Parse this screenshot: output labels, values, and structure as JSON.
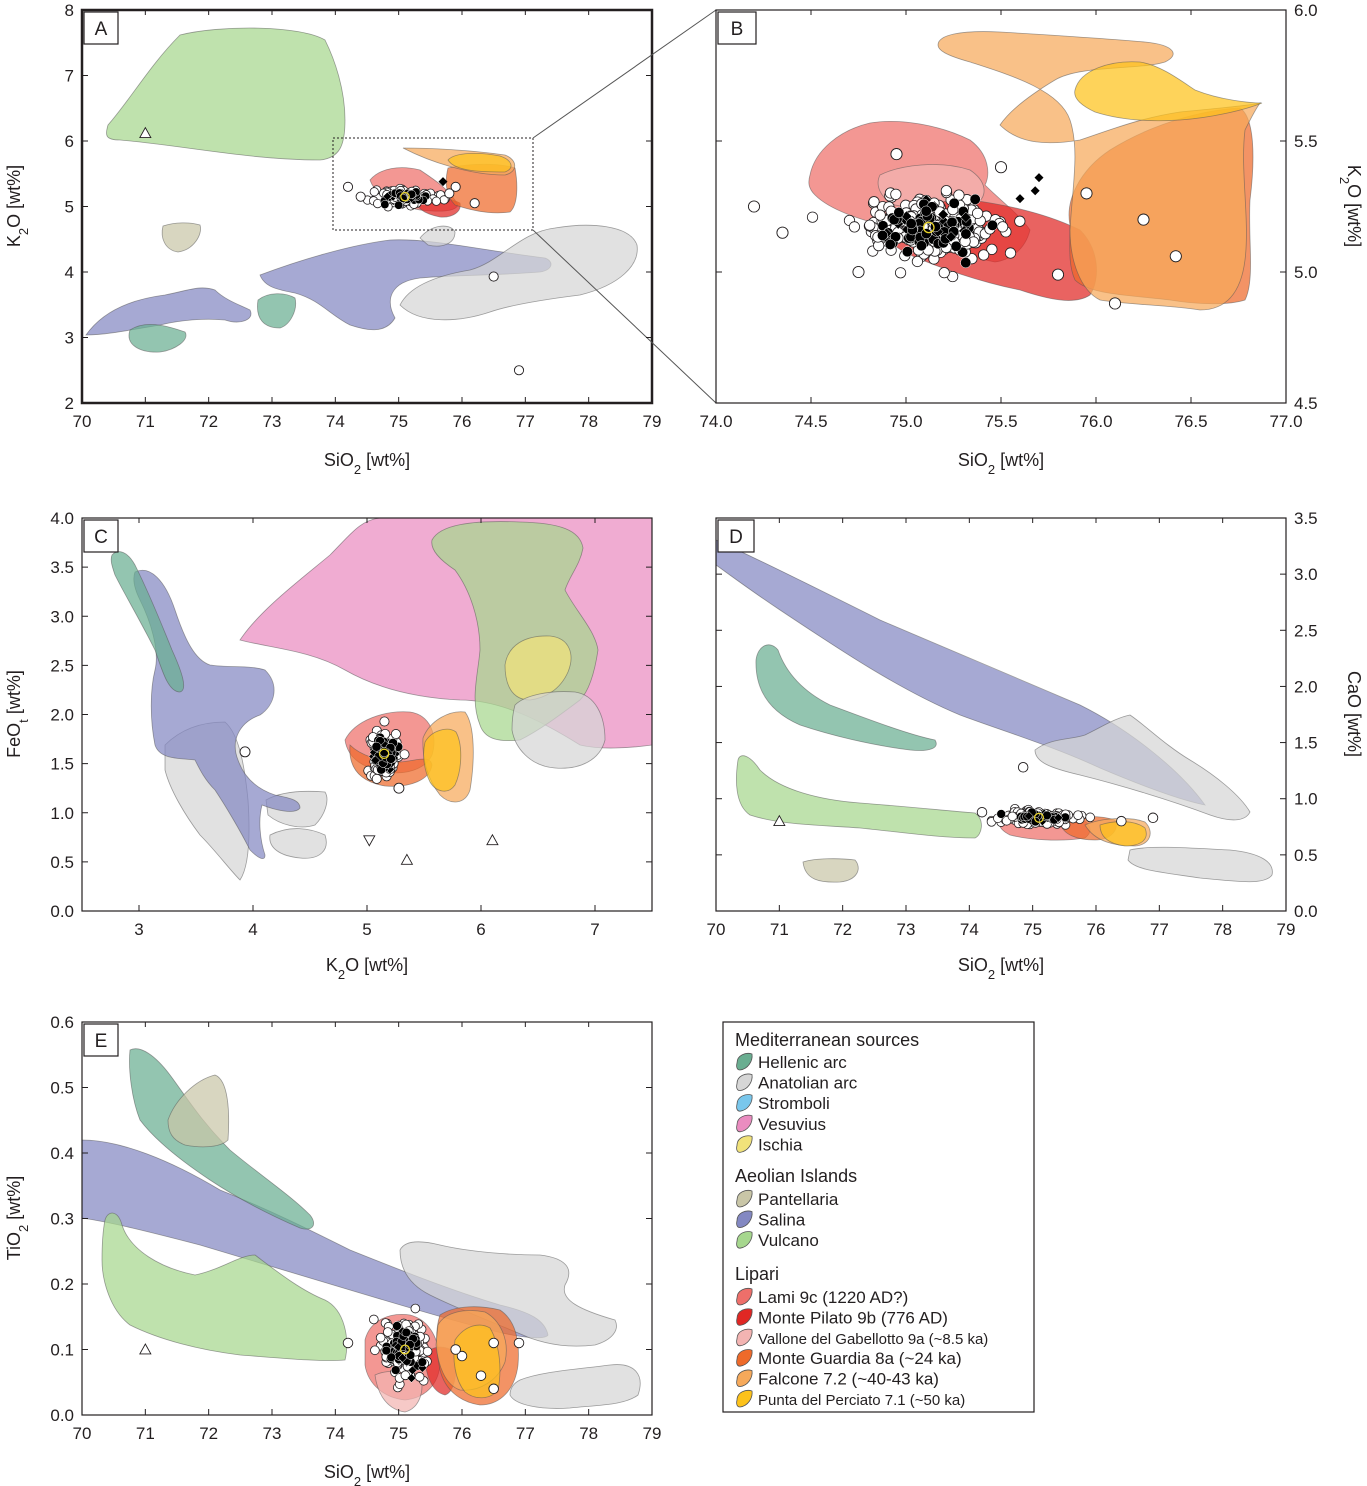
{
  "colors": {
    "hellenic": "#6aae91",
    "anatolian": "#d6d6d6",
    "stromboli": "#79c7ec",
    "vesuvius": "#ea8cc0",
    "ischia": "#f1e27a",
    "pantellaria": "#c9c6a7",
    "salina": "#8388c2",
    "vulcano": "#a6d78e",
    "lami": "#ee6f6a",
    "pilato": "#e02724",
    "vallone": "#f3b4b2",
    "guardia": "#ee6a2a",
    "falcone": "#f6a95a",
    "perciato": "#fdc21a"
  },
  "legend": {
    "group1": "Mediterranean sources",
    "group2": "Aeolian Islands",
    "group3": "Lipari",
    "items1": [
      {
        "key": "hellenic",
        "label": "Hellenic arc"
      },
      {
        "key": "anatolian",
        "label": "Anatolian arc"
      },
      {
        "key": "stromboli",
        "label": "Stromboli"
      },
      {
        "key": "vesuvius",
        "label": "Vesuvius"
      },
      {
        "key": "ischia",
        "label": "Ischia"
      }
    ],
    "items2": [
      {
        "key": "pantellaria",
        "label": "Pantellaria"
      },
      {
        "key": "salina",
        "label": "Salina"
      },
      {
        "key": "vulcano",
        "label": "Vulcano"
      }
    ],
    "items3": [
      {
        "key": "lami",
        "label": "Lami 9c (1220 AD?)"
      },
      {
        "key": "pilato",
        "label": "Monte Pilato 9b (776 AD)"
      },
      {
        "key": "vallone",
        "label": "Vallone del Gabellotto 9a (~8.5 ka)"
      },
      {
        "key": "guardia",
        "label": "Monte Guardia 8a (~24 ka)"
      },
      {
        "key": "falcone",
        "label": "Falcone 7.2 (~40-43 ka)"
      },
      {
        "key": "perciato",
        "label": "Punta del Perciato 7.1 (~50 ka)"
      }
    ]
  },
  "chart_data": [
    {
      "id": "A",
      "type": "scatter",
      "panel_label": "A",
      "xlabel": "SiO2 [wt%]",
      "ylabel": "K2O [wt%]",
      "xlim": [
        70,
        79
      ],
      "ylim": [
        2,
        8
      ],
      "xticks": [
        "70",
        "71",
        "72",
        "73",
        "74",
        "75",
        "76",
        "77",
        "78",
        "79"
      ],
      "yticks": [
        "2",
        "3",
        "4",
        "5",
        "6",
        "7",
        "8"
      ],
      "points_open": [
        [
          76.5,
          3.93
        ],
        [
          76.9,
          2.5
        ],
        [
          74.2,
          5.3
        ],
        [
          74.4,
          5.15
        ],
        [
          75.9,
          5.3
        ],
        [
          76.2,
          5.05
        ],
        [
          75.8,
          5.2
        ]
      ],
      "points_triangle": [
        [
          71.0,
          6.12
        ]
      ],
      "points_diamond": [
        [
          75.7,
          5.38
        ]
      ],
      "cluster_center": [
        75.1,
        5.15
      ]
    },
    {
      "id": "B",
      "type": "scatter",
      "panel_label": "B",
      "xlabel": "SiO2 [wt%]",
      "ylabel": "K2O [wt%]",
      "xlim": [
        74.0,
        77.0
      ],
      "ylim": [
        4.5,
        6.0
      ],
      "xticks": [
        "74.0",
        "74.5",
        "75.0",
        "75.5",
        "76.0",
        "76.5",
        "77.0"
      ],
      "yticks": [
        "4.5",
        "5.0",
        "5.5",
        "6.0"
      ],
      "points_open": [
        [
          74.2,
          5.25
        ],
        [
          74.35,
          5.15
        ],
        [
          74.75,
          5.0
        ],
        [
          75.95,
          5.3
        ],
        [
          76.25,
          5.2
        ],
        [
          76.42,
          5.06
        ],
        [
          76.1,
          4.88
        ],
        [
          75.8,
          4.99
        ],
        [
          75.5,
          5.4
        ],
        [
          74.95,
          5.45
        ]
      ],
      "points_diamond": [
        [
          75.7,
          5.36
        ],
        [
          75.68,
          5.31
        ],
        [
          75.6,
          5.28
        ]
      ],
      "cluster_center": [
        75.12,
        5.17
      ]
    },
    {
      "id": "C",
      "type": "scatter",
      "panel_label": "C",
      "xlabel": "K2O [wt%]",
      "ylabel": "FeOt [wt%]",
      "xlim": [
        2.5,
        7.5
      ],
      "ylim": [
        0,
        4
      ],
      "xticks": [
        "3",
        "4",
        "5",
        "6",
        "7"
      ],
      "yticks": [
        "0.0",
        "0.5",
        "1.0",
        "1.5",
        "2.0",
        "2.5",
        "3.0",
        "3.5",
        "4.0"
      ],
      "points_open": [
        [
          3.93,
          1.62
        ],
        [
          5.28,
          1.25
        ]
      ],
      "points_triangle": [
        [
          5.35,
          0.52
        ],
        [
          6.1,
          0.72
        ]
      ],
      "points_triangle_down": [
        [
          5.02,
          0.72
        ]
      ],
      "cluster_center": [
        5.15,
        1.6
      ]
    },
    {
      "id": "D",
      "type": "scatter",
      "panel_label": "D",
      "xlabel": "SiO2 [wt%]",
      "ylabel": "CaO [wt%]",
      "xlim": [
        70,
        79
      ],
      "ylim": [
        0,
        3.5
      ],
      "xticks": [
        "70",
        "71",
        "72",
        "73",
        "74",
        "75",
        "76",
        "77",
        "78",
        "79"
      ],
      "yticks": [
        "0.0",
        "0.5",
        "1.0",
        "1.5",
        "2.0",
        "2.5",
        "3.0",
        "3.5"
      ],
      "points_open": [
        [
          74.85,
          1.28
        ],
        [
          74.2,
          0.88
        ],
        [
          76.9,
          0.83
        ],
        [
          76.4,
          0.8
        ]
      ],
      "points_triangle": [
        [
          71.0,
          0.8
        ]
      ],
      "cluster_center": [
        75.1,
        0.83
      ]
    },
    {
      "id": "E",
      "type": "scatter",
      "panel_label": "E",
      "xlabel": "SiO2 [wt%]",
      "ylabel": "TiO2 [wt%]",
      "xlim": [
        70,
        79
      ],
      "ylim": [
        0,
        0.6
      ],
      "xticks": [
        "70",
        "71",
        "72",
        "73",
        "74",
        "75",
        "76",
        "77",
        "78",
        "79"
      ],
      "yticks": [
        "0.0",
        "0.1",
        "0.2",
        "0.3",
        "0.4",
        "0.5",
        "0.6"
      ],
      "points_open": [
        [
          74.2,
          0.11
        ],
        [
          76.5,
          0.11
        ],
        [
          76.9,
          0.11
        ],
        [
          76.3,
          0.06
        ],
        [
          76.0,
          0.09
        ],
        [
          75.9,
          0.1
        ],
        [
          76.5,
          0.04
        ]
      ],
      "points_triangle": [
        [
          71.0,
          0.1
        ]
      ],
      "cluster_center": [
        75.1,
        0.1
      ]
    }
  ]
}
